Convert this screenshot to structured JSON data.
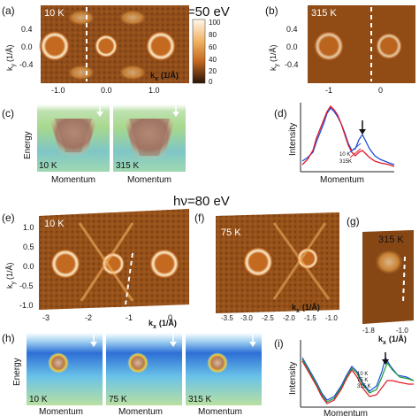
{
  "figure": {
    "energy_top": "hν=50 eV",
    "energy_mid": "hν=80 eV",
    "colorbar": {
      "ticks": [
        "100",
        "80",
        "60",
        "40",
        "20",
        "0"
      ],
      "colors": {
        "high": "#fff7ea",
        "mid": "#e7943a",
        "low": "#2b1406"
      }
    },
    "panels": {
      "a": {
        "label": "(a)",
        "temp": "10 K",
        "ylabel": "k_y (1/Å)",
        "ylabel_main": "k",
        "ylabel_sub": "y",
        "ylabel_unit": "(1/Å)",
        "xlabel_main": "k",
        "xlabel_sub": "x",
        "xlabel_unit": "(1/Å)",
        "yticks": [
          "0.4",
          "0.0",
          "-0.4"
        ],
        "xticks": [
          "-1.0",
          "0.0",
          "1.0"
        ]
      },
      "b": {
        "label": "(b)",
        "temp": "315 K",
        "yticks": [
          "0.4",
          "0.0",
          "-0.4"
        ],
        "xticks": [
          "-1",
          "0"
        ],
        "ylabel_main": "k",
        "ylabel_sub": "y",
        "ylabel_unit": "(1/Å)"
      },
      "c": {
        "label": "(c)",
        "ylabel": "Energy",
        "xlabel": "Momentum",
        "temps": [
          "10 K",
          "315 K"
        ]
      },
      "d": {
        "label": "(d)",
        "ylabel": "Intensity",
        "xlabel": "Momentum",
        "legend": [
          "10 K",
          "315K"
        ]
      },
      "e": {
        "label": "(e)",
        "temp": "10 K",
        "yticks": [
          "1.0",
          "0.5",
          "0.0",
          "-0.5",
          "-1.0"
        ],
        "xticks": [
          "-3",
          "-2",
          "-1",
          "0"
        ],
        "ylabel_main": "k",
        "ylabel_sub": "y",
        "ylabel_unit": "(1/Å)",
        "xlabel_main": "k",
        "xlabel_sub": "x",
        "xlabel_unit": "(1/Å)"
      },
      "f": {
        "label": "(f)",
        "temp": "75 K",
        "xticks": [
          "-3.5",
          "-3.0",
          "-2.5",
          "-2.0",
          "-1.5",
          "-1.0"
        ],
        "xlabel_main": "k",
        "xlabel_sub": "x",
        "xlabel_unit": "(1/Å)"
      },
      "g": {
        "label": "(g)",
        "temp": "315 K",
        "xticks": [
          "-1.8",
          "-1.0"
        ],
        "xlabel_main": "k",
        "xlabel_sub": "x",
        "xlabel_unit": "(1/Å)"
      },
      "h": {
        "label": "(h)",
        "ylabel": "Energy",
        "temps": [
          "10 K",
          "75 K",
          "315 K"
        ],
        "xlabel": "Momentum"
      },
      "i": {
        "label": "(i)",
        "ylabel": "Intensity",
        "xlabel": "Momentum",
        "legend": [
          "10 K",
          "75 K",
          "315 K"
        ]
      }
    }
  }
}
